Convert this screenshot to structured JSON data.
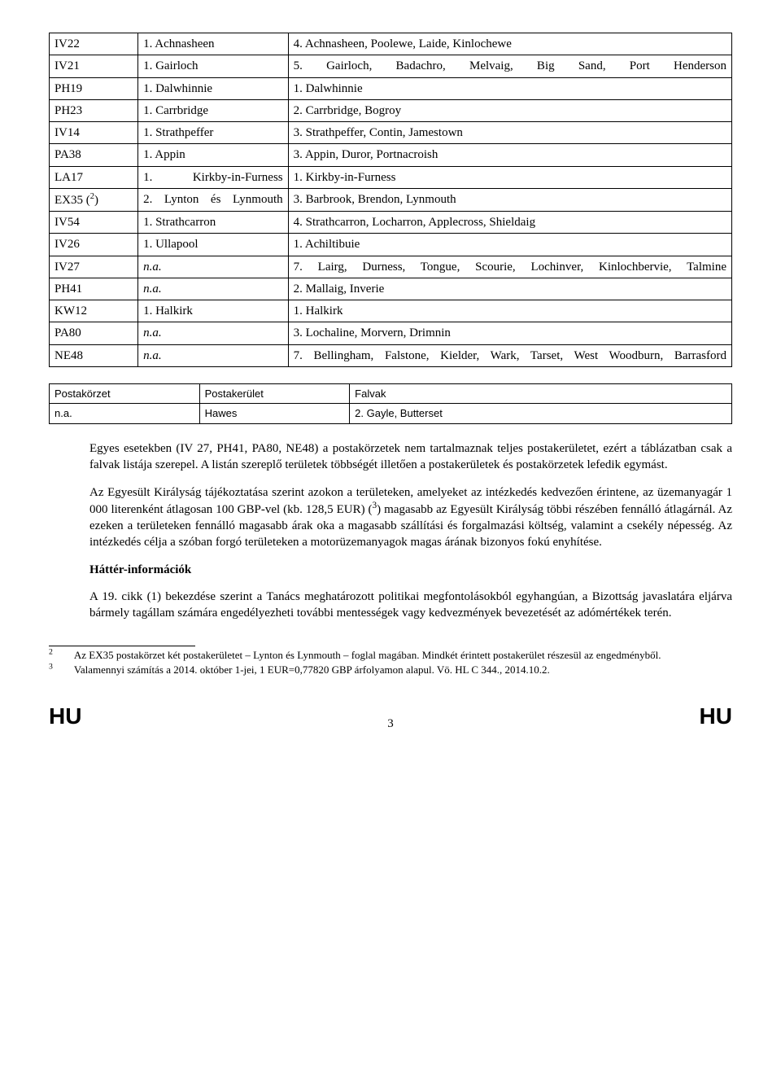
{
  "table1": {
    "rows": [
      {
        "c1": "IV22",
        "c2": "1. Achnasheen",
        "c3": "4. Achnasheen, Poolewe, Laide, Kinlochewe"
      },
      {
        "c1": "IV21",
        "c2": "1. Gairloch",
        "c3": "5. Gairloch, Badachro, Melvaig, Big Sand, Port Henderson",
        "c3justify": true
      },
      {
        "c1": "PH19",
        "c2": "1. Dalwhinnie",
        "c3": "1. Dalwhinnie"
      },
      {
        "c1": "PH23",
        "c2": "1. Carrbridge",
        "c3": "2. Carrbridge, Bogroy"
      },
      {
        "c1": "IV14",
        "c2": "1. Strathpeffer",
        "c3": "3. Strathpeffer, Contin, Jamestown"
      },
      {
        "c1": "PA38",
        "c2": "1. Appin",
        "c3": "3. Appin, Duror, Portnacroish"
      },
      {
        "c1": "LA17",
        "c2": "1. Kirkby-in-Furness",
        "c2justify": true,
        "c3": "1. Kirkby-in-Furness"
      },
      {
        "c1": "EX35 (²)",
        "c2": "2. Lynton és Lynmouth",
        "c2justify": true,
        "c3": "3. Barbrook, Brendon, Lynmouth"
      },
      {
        "c1": "IV54",
        "c2": "1. Strathcarron",
        "c3": "4. Strathcarron, Locharron, Applecross, Shieldaig"
      },
      {
        "c1": "IV26",
        "c2": "1. Ullapool",
        "c3": "1. Achiltibuie"
      },
      {
        "c1": "IV27",
        "c2": "n.a.",
        "c2italic": true,
        "c3": "7. Lairg, Durness, Tongue, Scourie, Lochinver, Kinlochbervie, Talmine",
        "c3justify": true
      },
      {
        "c1": "PH41",
        "c2": "n.a.",
        "c2italic": true,
        "c3": "2. Mallaig, Inverie"
      },
      {
        "c1": "KW12",
        "c2": "1. Halkirk",
        "c3": "1. Halkirk"
      },
      {
        "c1": "PA80",
        "c2": "n.a.",
        "c2italic": true,
        "c3": "3. Lochaline, Morvern, Drimnin"
      },
      {
        "c1": "NE48",
        "c2": "n.a.",
        "c2italic": true,
        "c3": "7. Bellingham, Falstone, Kielder, Wark, Tarset, West Woodburn, Barrasford",
        "c3justify": true
      }
    ]
  },
  "table2": {
    "header": {
      "c1": "Postakörzet",
      "c2": "Postakerület",
      "c3": "Falvak"
    },
    "row": {
      "c1": "n.a.",
      "c2": "Hawes",
      "c3": "2. Gayle, Butterset"
    }
  },
  "para1": "Egyes esetekben (IV 27, PH41, PA80, NE48) a postakörzetek nem tartalmaznak teljes postakerületet, ezért a táblázatban csak a falvak listája szerepel. A listán szereplő területek többségét illetően a postakerületek és postakörzetek lefedik egymást.",
  "para2_a": "Az Egyesült Királyság tájékoztatása szerint azokon a területeken, amelyeket az intézkedés kedvezően érintene, az üzemanyagár 1 000 literenként átlagosan 100 GBP-vel (kb. 128,5 EUR) (",
  "para2_b": ") magasabb az Egyesült Királyság többi részében fennálló átlagárnál. Az ezeken a területeken fennálló magasabb árak oka a magasabb szállítási és forgalmazási költség, valamint a csekély népesség. Az intézkedés célja a szóban forgó területeken a motorüzemanyagok magas árának bizonyos fokú enyhítése.",
  "heading1": "Háttér-információk",
  "para3": "A 19. cikk (1) bekezdése szerint a Tanács meghatározott politikai megfontolásokból egyhangúan, a Bizottság javaslatára eljárva bármely tagállam számára engedélyezheti további mentességek vagy kedvezmények bevezetését az adómértékek terén.",
  "footnote2_a": "Az EX35 postakörzet két postakerületet – Lynton és Lynmouth – foglal magában. Mindkét érintett postakerület részesül az engedményből.",
  "footnote3_a": "Valamennyi számítás a 2014. október 1-jei, 1 EUR=0,77820 GBP árfolyamon alapul. Vö. HL C 344., 2014.10.2.",
  "footer": {
    "lang": "HU",
    "page": "3"
  }
}
